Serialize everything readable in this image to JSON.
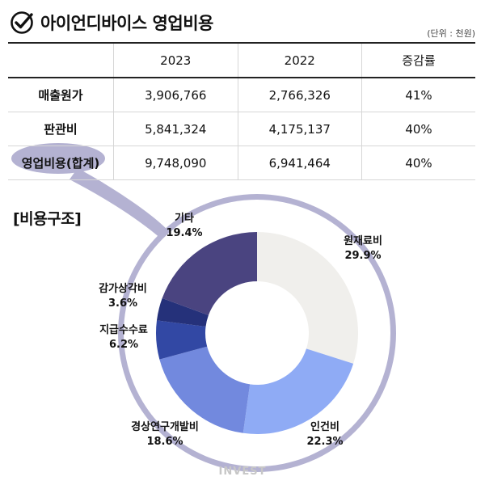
{
  "header": {
    "title": "아이언디바이스 영업비용",
    "unit": "(단위 : 천원)"
  },
  "table": {
    "columns": [
      "",
      "2023",
      "2022",
      "증감률"
    ],
    "rows": [
      {
        "label": "매출원가",
        "values": [
          "3,906,766",
          "2,766,326",
          "41%"
        ]
      },
      {
        "label": "판관비",
        "values": [
          "5,841,324",
          "4,175,137",
          "40%"
        ]
      },
      {
        "label": "영업비용(합계)",
        "values": [
          "9,748,090",
          "6,941,464",
          "40%"
        ]
      }
    ]
  },
  "section_title": "[비용구조]",
  "watermark": "INVEST",
  "colors": {
    "bubble": "#b4b2d2",
    "accent": "#4a4480"
  },
  "chart_data": {
    "type": "pie",
    "title": "",
    "slices": [
      {
        "name": "원재료비",
        "value": 29.9,
        "label": "29.9%",
        "color": "#f0efec"
      },
      {
        "name": "인건비",
        "value": 22.3,
        "label": "22.3%",
        "color": "#8fabf5"
      },
      {
        "name": "경상연구개발비",
        "value": 18.6,
        "label": "18.6%",
        "color": "#7289de"
      },
      {
        "name": "지급수수료",
        "value": 6.2,
        "label": "6.2%",
        "color": "#3248a4"
      },
      {
        "name": "감가상각비",
        "value": 3.6,
        "label": "3.6%",
        "color": "#25317a"
      },
      {
        "name": "기타",
        "value": 19.4,
        "label": "19.4%",
        "color": "#4a4480"
      }
    ]
  }
}
